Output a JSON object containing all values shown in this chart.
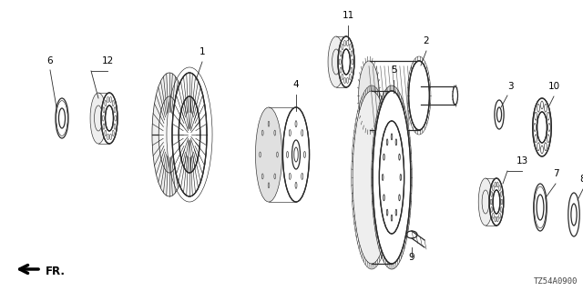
{
  "bg_color": "#ffffff",
  "line_color": "#2a2a2a",
  "label_color": "#000000",
  "diagram_code": "TZ54A0900",
  "figsize": [
    6.4,
    3.2
  ],
  "dpi": 100
}
